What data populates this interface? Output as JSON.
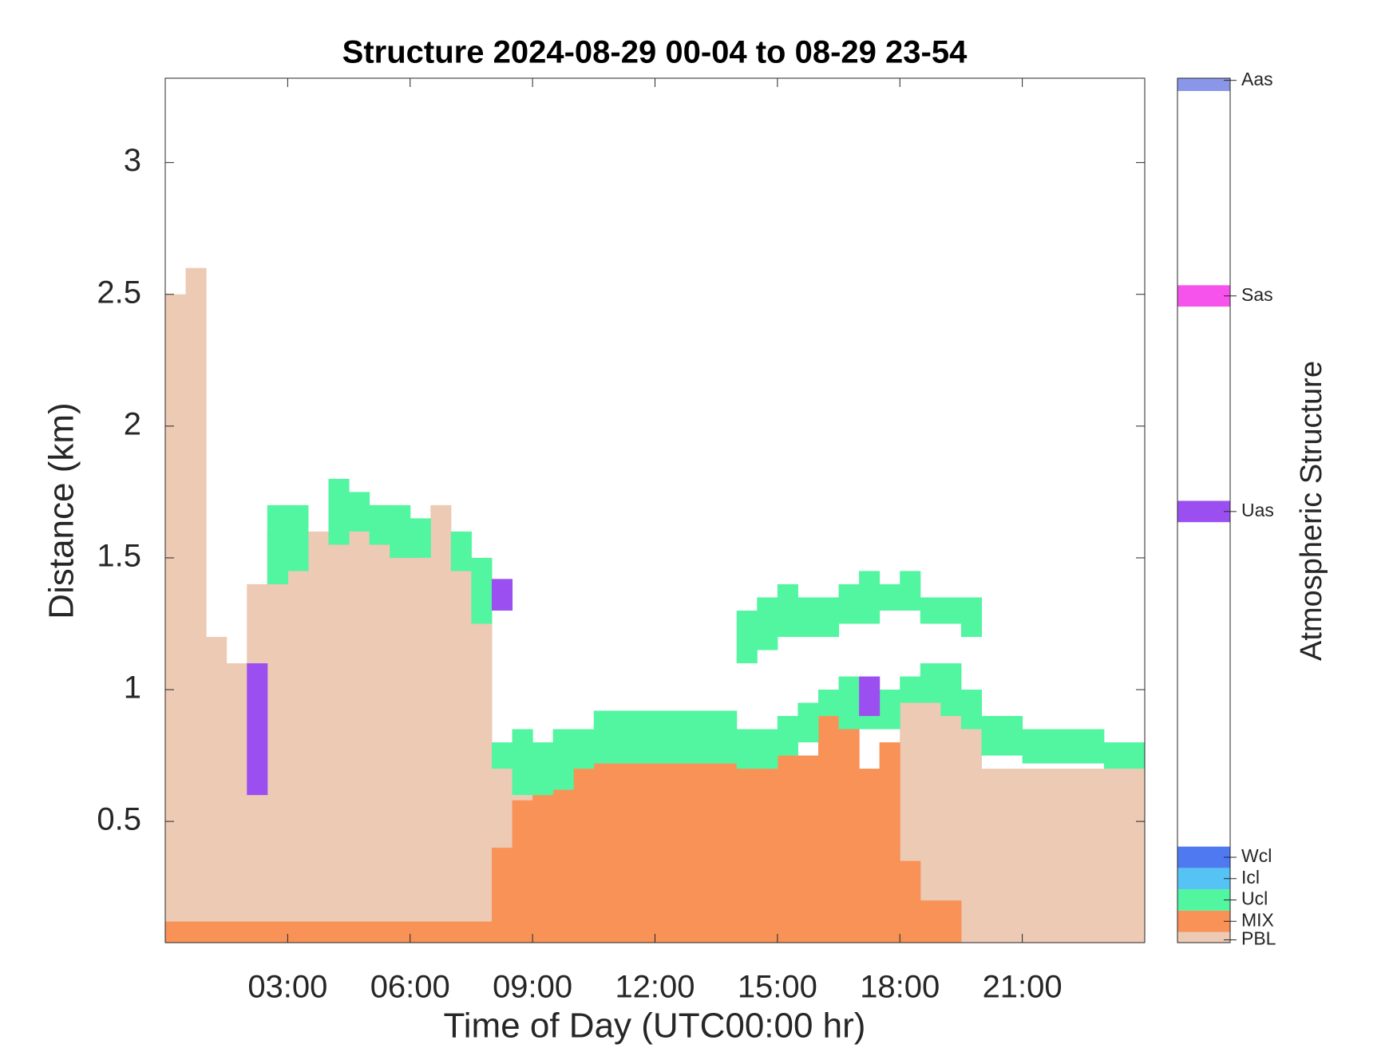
{
  "chart_data": {
    "type": "layers",
    "title": "Structure 2024-08-29 00-04 to 08-29 23-54",
    "xlabel": "Time of Day (UTC00:00 hr)",
    "ylabel": "Distance (km)",
    "colorbar_label": "Atmospheric Structure",
    "x": [
      0.25,
      0.75,
      1.25,
      1.75,
      2.25,
      2.75,
      3.25,
      3.75,
      4.25,
      4.75,
      5.25,
      5.75,
      6.25,
      6.75,
      7.25,
      7.75,
      8.25,
      8.75,
      9.25,
      9.75,
      10.25,
      10.75,
      11.25,
      11.75,
      12.25,
      12.75,
      13.25,
      13.75,
      14.25,
      14.75,
      15.25,
      15.75,
      16.25,
      16.75,
      17.25,
      17.75,
      18.25,
      18.75,
      19.25,
      19.75,
      20.25,
      20.75,
      21.25,
      21.75,
      22.25,
      22.75,
      23.25,
      23.75
    ],
    "xlim": [
      0,
      24
    ],
    "xticks": [
      {
        "value": 3,
        "label": "03:00"
      },
      {
        "value": 6,
        "label": "06:00"
      },
      {
        "value": 9,
        "label": "09:00"
      },
      {
        "value": 12,
        "label": "12:00"
      },
      {
        "value": 15,
        "label": "15:00"
      },
      {
        "value": 18,
        "label": "18:00"
      },
      {
        "value": 21,
        "label": "21:00"
      }
    ],
    "ylim": [
      0.04,
      3.32
    ],
    "yticks": [
      0.5,
      1,
      1.5,
      2,
      2.5,
      3
    ],
    "clim": [
      0,
      40.5
    ],
    "classes": [
      {
        "name": "PBL",
        "color": "#eccab4",
        "code": 0.13
      },
      {
        "name": "MIX",
        "color": "#f89257",
        "code": 1
      },
      {
        "name": "Ucl",
        "color": "#52f5a0",
        "code": 2
      },
      {
        "name": "Icl",
        "color": "#55c4f5",
        "code": 3
      },
      {
        "name": "Wcl",
        "color": "#4f79f1",
        "code": 4
      },
      {
        "name": "Uas",
        "color": "#9b4ff0",
        "code": 20.2
      },
      {
        "name": "Sas",
        "color": "#f652ec",
        "code": 30.3
      },
      {
        "name": "Aas",
        "color": "#8a97e8",
        "code": 40.4
      }
    ],
    "layers": [
      {
        "class": "PBL",
        "top": [
          2.5,
          2.6,
          1.2,
          1.1,
          1.4,
          1.6,
          1.5,
          1.6,
          1.7,
          1.6,
          1.7,
          1.55,
          1.5,
          1.7,
          1.5,
          1.5,
          0.7,
          0.6,
          0.62,
          0.62,
          0.7,
          0.72,
          0.72,
          0.72,
          0.72,
          0.72,
          0.72,
          0.72,
          0.7,
          0.7,
          0.75,
          0.75,
          0.9,
          0.85,
          0.7,
          0.8,
          0.95,
          0.95,
          0.9,
          0.85,
          0.7,
          0.7,
          0.7,
          0.7,
          0.7,
          0.7,
          0.7,
          0.7
        ]
      },
      {
        "class": "MIX",
        "top": [
          0.12,
          0.12,
          0.12,
          0.12,
          0.12,
          0.12,
          0.12,
          0.12,
          0.12,
          0.12,
          0.12,
          0.12,
          0.12,
          0.12,
          0.12,
          0.12,
          0.4,
          0.58,
          0.6,
          0.62,
          0.7,
          0.72,
          0.72,
          0.72,
          0.72,
          0.72,
          0.72,
          0.72,
          0.7,
          0.7,
          0.75,
          0.75,
          0.9,
          0.85,
          0.7,
          0.8,
          0.35,
          0.2,
          0.2,
          null,
          null,
          null,
          null,
          null,
          null,
          null,
          null,
          null
        ]
      },
      {
        "class": "Ucl",
        "base": [
          null,
          null,
          null,
          null,
          null,
          1.4,
          1.45,
          null,
          1.55,
          1.6,
          1.55,
          1.5,
          1.5,
          null,
          1.45,
          1.25,
          0.7,
          0.6,
          0.6,
          0.62,
          0.7,
          0.72,
          0.72,
          0.72,
          0.72,
          0.72,
          0.72,
          0.72,
          0.7,
          0.7,
          0.75,
          0.8,
          0.9,
          0.85,
          0.85,
          0.85,
          0.95,
          0.95,
          0.9,
          0.85,
          0.75,
          0.75,
          0.72,
          0.72,
          0.72,
          0.72,
          0.7,
          0.7
        ],
        "top": [
          null,
          null,
          null,
          null,
          null,
          1.7,
          1.7,
          null,
          1.8,
          1.75,
          1.7,
          1.7,
          1.65,
          null,
          1.6,
          1.5,
          0.8,
          0.85,
          0.8,
          0.85,
          0.85,
          0.92,
          0.92,
          0.92,
          0.92,
          0.92,
          0.92,
          0.92,
          0.85,
          0.85,
          0.9,
          0.95,
          1.0,
          1.05,
          1.05,
          1.0,
          1.05,
          1.1,
          1.1,
          1.0,
          0.9,
          0.9,
          0.85,
          0.85,
          0.85,
          0.85,
          0.8,
          0.8
        ]
      },
      {
        "class": "Ucl",
        "base": [
          null,
          null,
          null,
          null,
          null,
          null,
          null,
          null,
          null,
          null,
          null,
          null,
          null,
          null,
          null,
          null,
          null,
          null,
          null,
          null,
          null,
          null,
          null,
          null,
          null,
          null,
          null,
          null,
          1.1,
          1.15,
          1.2,
          1.2,
          1.2,
          1.25,
          1.25,
          1.3,
          1.3,
          1.25,
          1.25,
          1.2,
          null,
          null,
          null,
          null,
          null,
          null,
          null,
          null
        ],
        "top": [
          null,
          null,
          null,
          null,
          null,
          null,
          null,
          null,
          null,
          null,
          null,
          null,
          null,
          null,
          null,
          null,
          null,
          null,
          null,
          null,
          null,
          null,
          null,
          null,
          null,
          null,
          null,
          null,
          1.3,
          1.35,
          1.4,
          1.35,
          1.35,
          1.4,
          1.45,
          1.4,
          1.45,
          1.35,
          1.35,
          1.35,
          null,
          null,
          null,
          null,
          null,
          null,
          null,
          null
        ]
      },
      {
        "class": "Uas",
        "base": [
          null,
          null,
          null,
          null,
          0.6,
          null,
          null,
          null,
          null,
          null,
          null,
          null,
          null,
          null,
          null,
          null,
          1.3,
          null,
          null,
          null,
          null,
          null,
          null,
          null,
          null,
          null,
          null,
          null,
          null,
          null,
          null,
          null,
          null,
          null,
          0.9,
          null,
          null,
          null,
          null,
          null,
          null,
          null,
          null,
          null,
          null,
          null,
          null,
          null
        ],
        "top": [
          null,
          null,
          null,
          null,
          1.1,
          null,
          null,
          null,
          null,
          null,
          null,
          null,
          null,
          null,
          null,
          null,
          1.42,
          null,
          null,
          null,
          null,
          null,
          null,
          null,
          null,
          null,
          null,
          null,
          null,
          null,
          null,
          null,
          null,
          null,
          1.05,
          null,
          null,
          null,
          null,
          null,
          null,
          null,
          null,
          null,
          null,
          null,
          null,
          null
        ]
      }
    ]
  }
}
